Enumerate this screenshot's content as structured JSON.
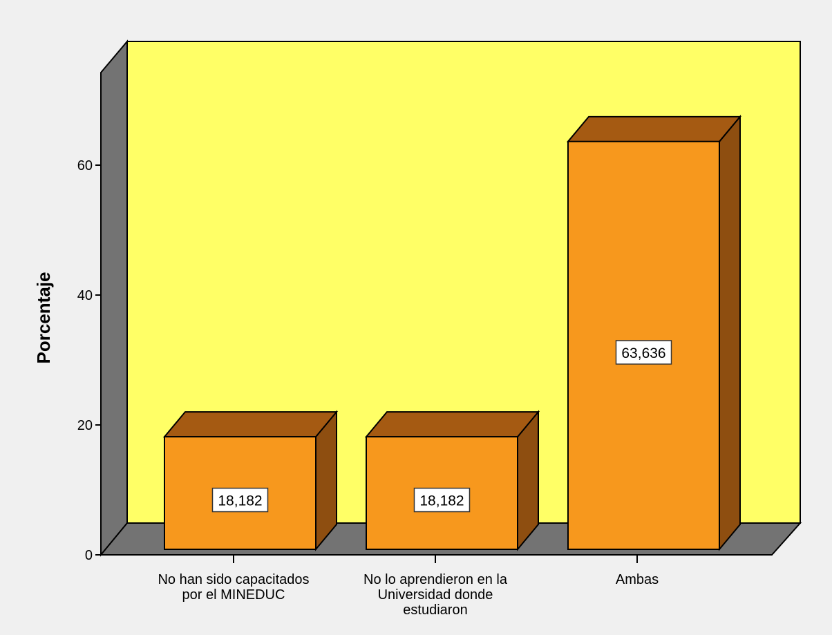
{
  "chart_data": {
    "type": "bar",
    "title": "",
    "xlabel": "",
    "ylabel": "Porcentaje",
    "ylim": [
      0,
      73
    ],
    "yticks": [
      0,
      20,
      40,
      60
    ],
    "categories": [
      [
        "No han sido capacitados",
        "por el MINEDUC"
      ],
      [
        "No lo aprendieron en la",
        "Universidad donde",
        "estudiaron"
      ],
      [
        "Ambas"
      ]
    ],
    "values": [
      18.182,
      18.182,
      63.636
    ],
    "value_labels": [
      "18,182",
      "18,182",
      "63,636"
    ],
    "style": "3d",
    "colors": {
      "plot_back": "#ffff66",
      "plot_side": "#737373",
      "bar_front": "#f7981d",
      "bar_top": "#a55a12",
      "bar_side": "#8e4e10",
      "outline": "#000000",
      "background": "#f0f0f0"
    }
  }
}
